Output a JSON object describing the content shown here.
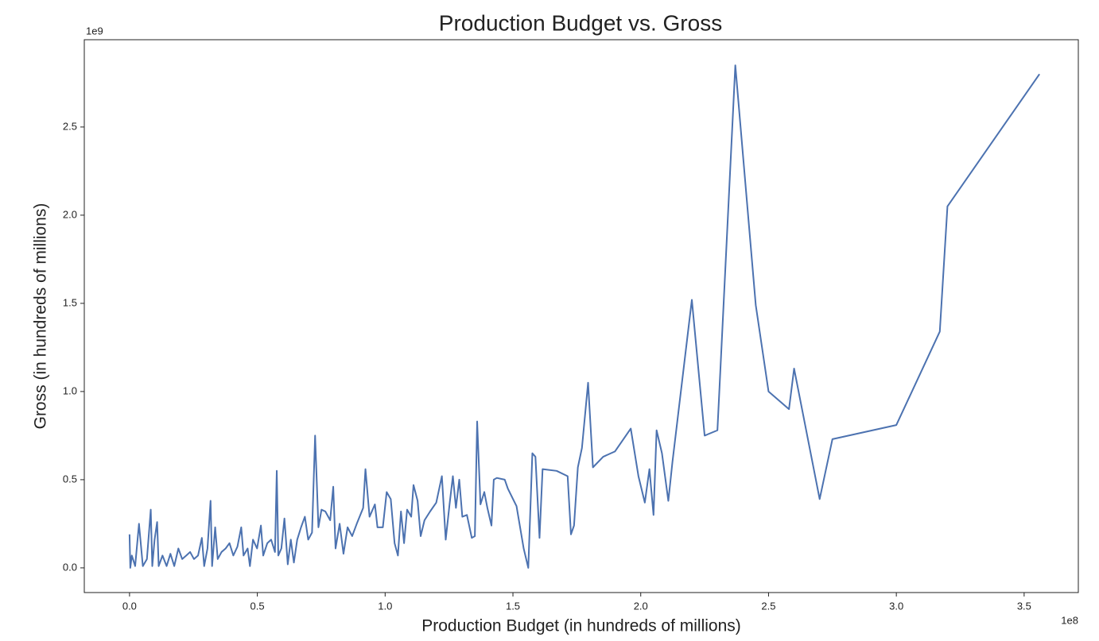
{
  "chart_data": {
    "type": "line",
    "title": "Production Budget vs. Gross",
    "x_label": "Production Budget (in hundreds of millions)",
    "y_label": "Gross (in hundreds of millions)",
    "x_offset_label": "1e8",
    "y_offset_label": "1e9",
    "color": "#4c72b0",
    "grid": false,
    "xlim": [
      -0.177,
      3.712
    ],
    "ylim": [
      -0.14,
      2.995
    ],
    "xticks": [
      {
        "value": 0,
        "label": "0.0"
      },
      0.5,
      {
        "value": 1,
        "label": "1.0"
      },
      1.5,
      {
        "value": 2,
        "label": "2.0"
      },
      2.5,
      {
        "value": 3,
        "label": "3.0"
      },
      3.5
    ],
    "yticks": [
      {
        "value": 0,
        "label": "0.0"
      },
      0.5,
      {
        "value": 1,
        "label": "1.0"
      },
      1.5,
      {
        "value": 2,
        "label": "2.0"
      },
      2.5
    ],
    "x": [
      0,
      0.003,
      0.009,
      0.022,
      0.037,
      0.052,
      0.068,
      0.083,
      0.089,
      0.098,
      0.108,
      0.114,
      0.129,
      0.145,
      0.16,
      0.175,
      0.191,
      0.206,
      0.222,
      0.237,
      0.252,
      0.268,
      0.283,
      0.292,
      0.305,
      0.317,
      0.323,
      0.335,
      0.345,
      0.36,
      0.376,
      0.391,
      0.406,
      0.422,
      0.437,
      0.446,
      0.462,
      0.471,
      0.483,
      0.499,
      0.514,
      0.523,
      0.539,
      0.554,
      0.569,
      0.576,
      0.582,
      0.594,
      0.606,
      0.619,
      0.631,
      0.643,
      0.656,
      0.671,
      0.686,
      0.699,
      0.714,
      0.726,
      0.739,
      0.751,
      0.766,
      0.785,
      0.797,
      0.806,
      0.822,
      0.837,
      0.853,
      0.871,
      0.889,
      0.914,
      0.923,
      0.939,
      0.96,
      0.97,
      0.991,
      1.006,
      1.022,
      1.037,
      1.05,
      1.062,
      1.074,
      1.086,
      1.102,
      1.111,
      1.127,
      1.139,
      1.154,
      1.176,
      1.2,
      1.222,
      1.237,
      1.252,
      1.265,
      1.277,
      1.29,
      1.302,
      1.32,
      1.339,
      1.351,
      1.36,
      1.373,
      1.388,
      1.4,
      1.416,
      1.425,
      1.437,
      1.468,
      1.48,
      1.514,
      1.542,
      1.56,
      1.576,
      1.588,
      1.604,
      1.616,
      1.671,
      1.714,
      1.727,
      1.739,
      1.754,
      1.77,
      1.794,
      1.813,
      1.853,
      1.899,
      1.961,
      1.991,
      2.016,
      2.034,
      2.05,
      2.062,
      2.083,
      2.108,
      2.124,
      2.2,
      2.25,
      2.3,
      2.37,
      2.45,
      2.5,
      2.58,
      2.6,
      2.7,
      2.75,
      3.0,
      3.17,
      3.2,
      3.56
    ],
    "values": [
      0.19,
      0,
      0.07,
      0.01,
      0.25,
      0.01,
      0.05,
      0.33,
      0.01,
      0.16,
      0.26,
      0.01,
      0.07,
      0.01,
      0.08,
      0.01,
      0.11,
      0.05,
      0.07,
      0.09,
      0.05,
      0.07,
      0.17,
      0.01,
      0.11,
      0.38,
      0.01,
      0.23,
      0.05,
      0.09,
      0.11,
      0.14,
      0.07,
      0.12,
      0.23,
      0.07,
      0.11,
      0.01,
      0.16,
      0.11,
      0.24,
      0.07,
      0.14,
      0.16,
      0.09,
      0.55,
      0.07,
      0.11,
      0.28,
      0.02,
      0.16,
      0.03,
      0.16,
      0.23,
      0.29,
      0.16,
      0.2,
      0.75,
      0.23,
      0.33,
      0.32,
      0.27,
      0.46,
      0.11,
      0.25,
      0.08,
      0.23,
      0.18,
      0.25,
      0.34,
      0.56,
      0.29,
      0.36,
      0.23,
      0.23,
      0.43,
      0.39,
      0.14,
      0.07,
      0.32,
      0.14,
      0.33,
      0.29,
      0.47,
      0.38,
      0.18,
      0.27,
      0.32,
      0.37,
      0.52,
      0.16,
      0.36,
      0.52,
      0.34,
      0.5,
      0.29,
      0.3,
      0.17,
      0.18,
      0.83,
      0.36,
      0.43,
      0.34,
      0.24,
      0.5,
      0.51,
      0.5,
      0.45,
      0.35,
      0.11,
      0,
      0.65,
      0.63,
      0.17,
      0.56,
      0.55,
      0.52,
      0.19,
      0.24,
      0.57,
      0.68,
      1.05,
      0.57,
      0.63,
      0.66,
      0.79,
      0.52,
      0.37,
      0.56,
      0.3,
      0.78,
      0.65,
      0.38,
      0.6,
      1.52,
      0.75,
      0.78,
      2.85,
      1.49,
      1.0,
      0.9,
      1.13,
      0.39,
      0.73,
      0.81,
      1.34,
      2.05,
      2.8
    ]
  }
}
